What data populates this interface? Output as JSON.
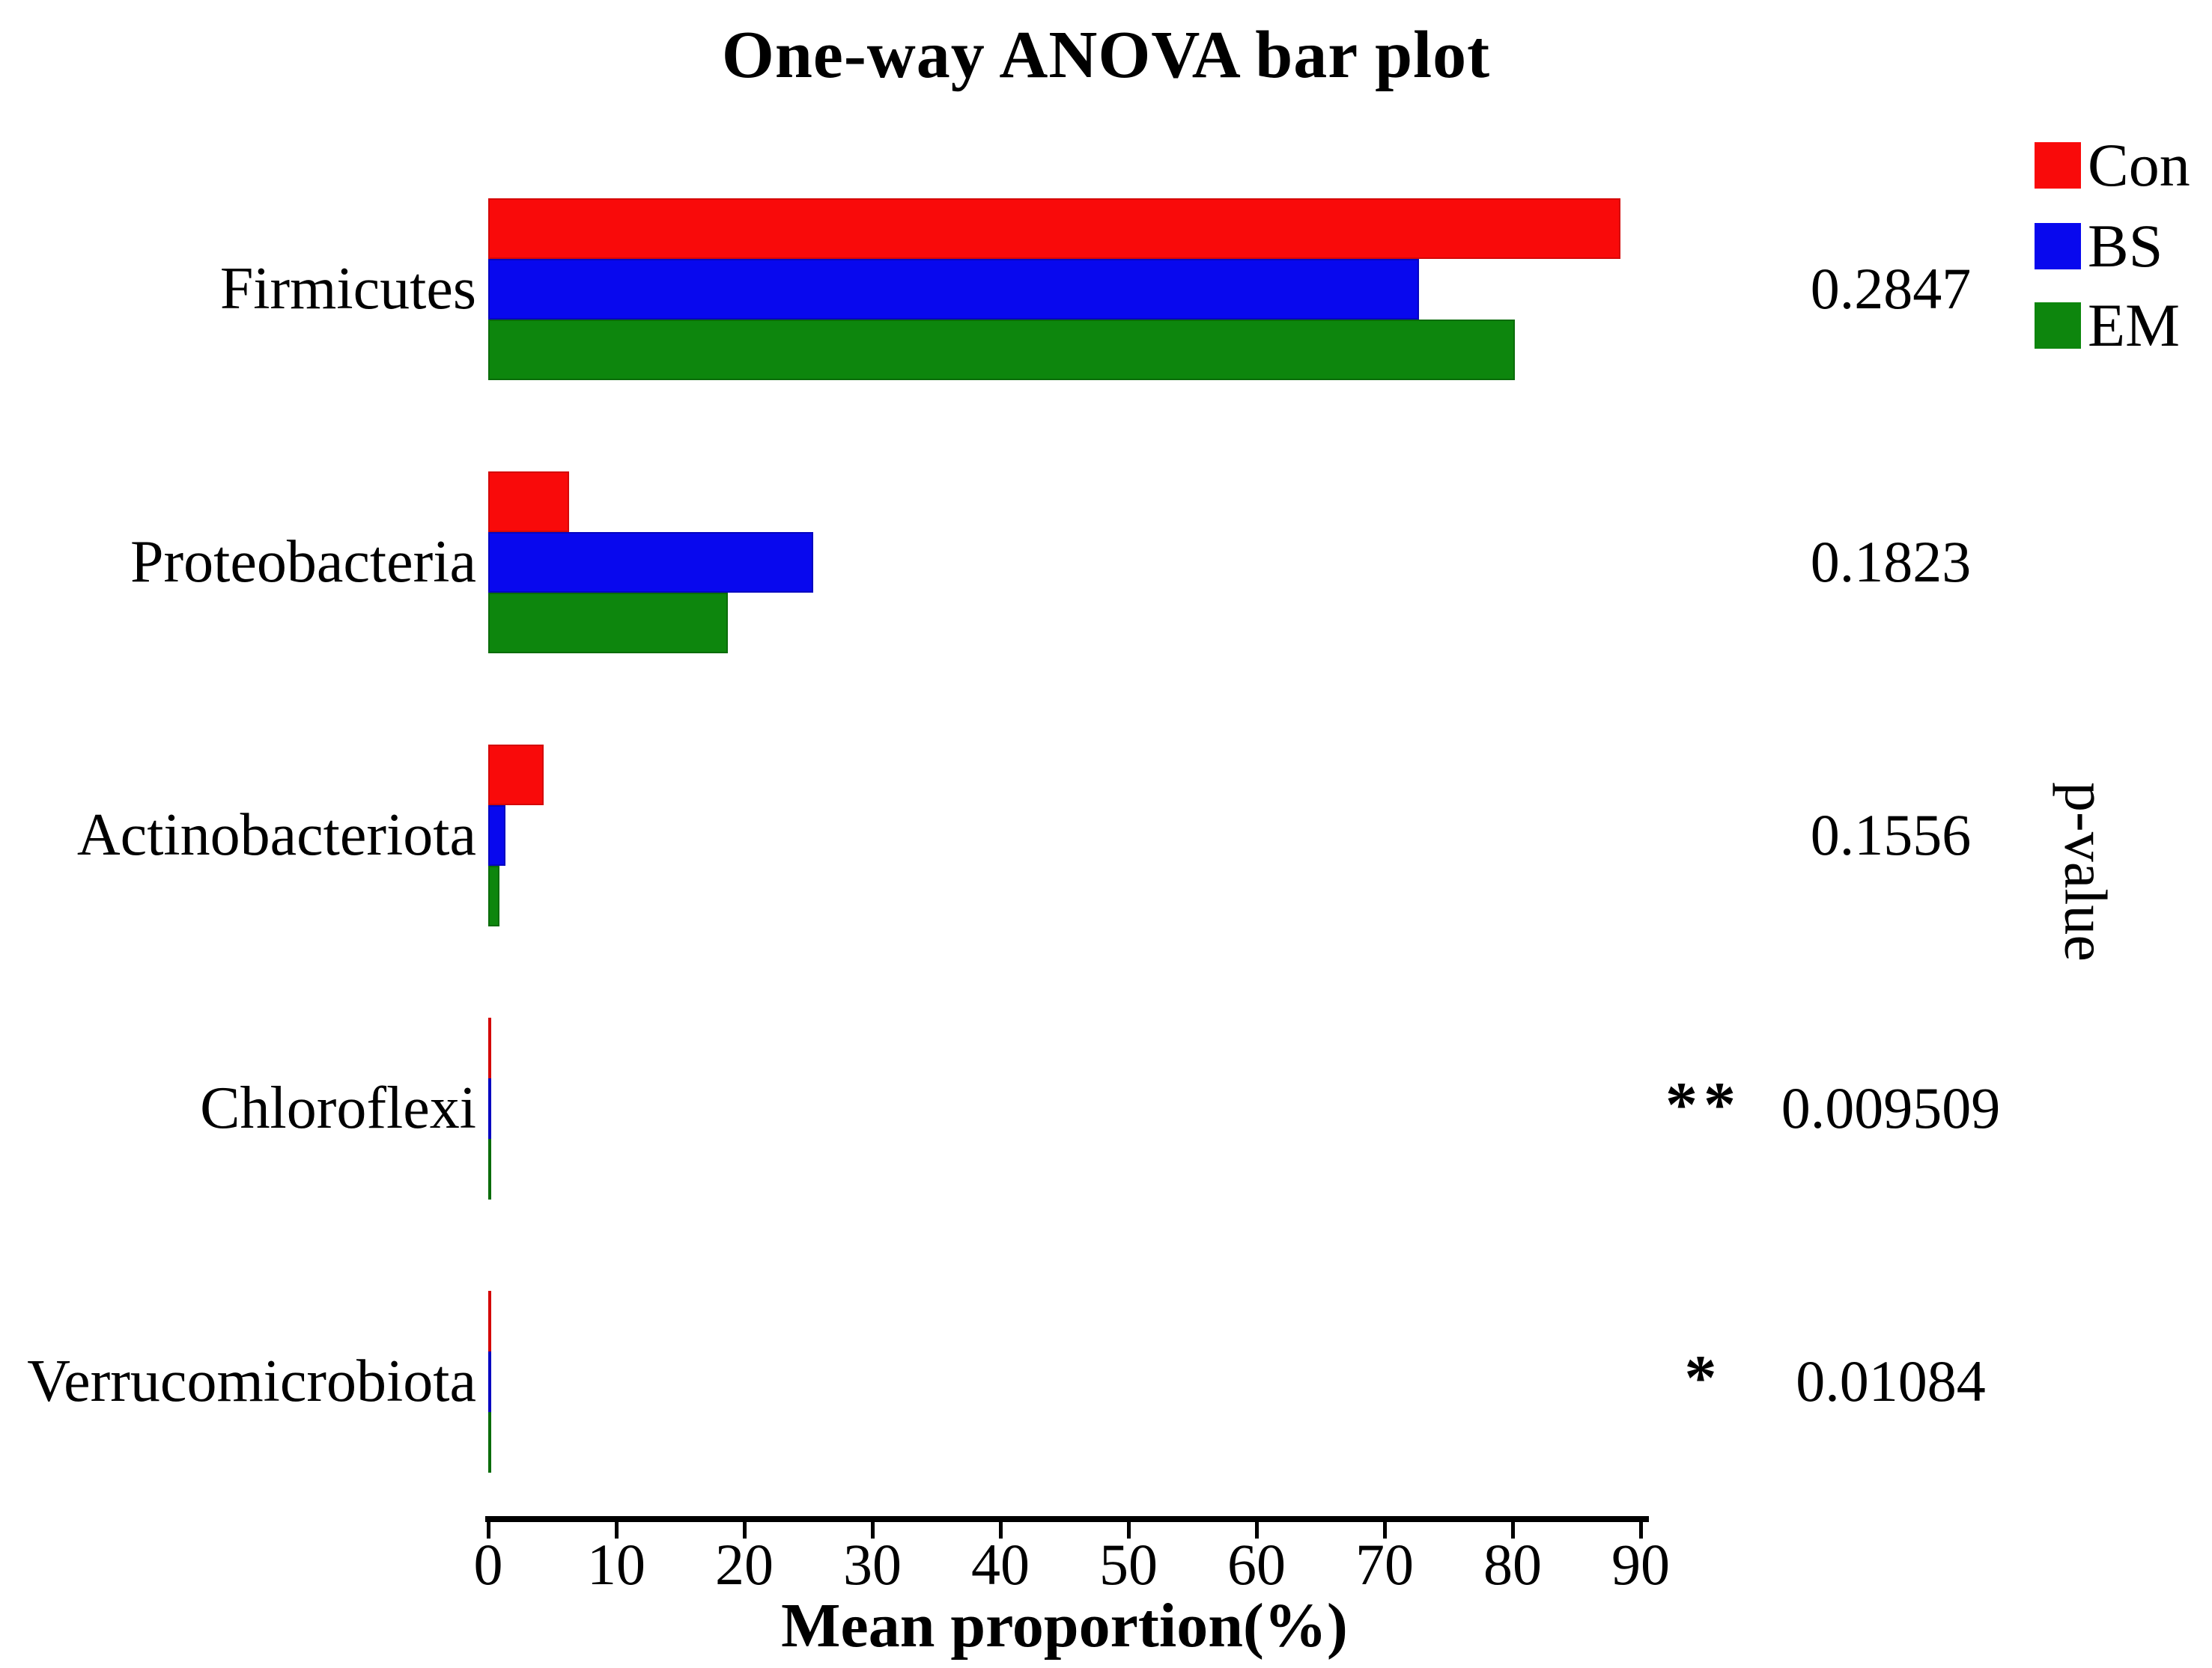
{
  "chart_data": {
    "type": "bar",
    "orientation": "horizontal",
    "title": "One-way ANOVA bar plot",
    "xlabel": "Mean proportion(%)",
    "right_label": "p-value",
    "xlim": [
      0,
      90
    ],
    "x_ticks": [
      0,
      10,
      20,
      30,
      40,
      50,
      60,
      70,
      80,
      90
    ],
    "grid": false,
    "legend_position": "top-right",
    "categories": [
      "Firmicutes",
      "Proteobacteria",
      "Actinobacteriota",
      "Chloroflexi",
      "Verrucomicrobiota"
    ],
    "series": [
      {
        "name": "Con",
        "color": "#f90a0a",
        "edge_color": "#d40808",
        "values": [
          88.4,
          6.3,
          4.3,
          0.25,
          0.18
        ]
      },
      {
        "name": "BS",
        "color": "#0808ee",
        "edge_color": "#0505c0",
        "values": [
          72.7,
          25.4,
          1.35,
          0.1,
          0.07
        ]
      },
      {
        "name": "EM",
        "color": "#0d860d",
        "edge_color": "#0a6c0a",
        "values": [
          80.2,
          18.7,
          0.85,
          0.08,
          0.05
        ]
      }
    ],
    "p_values": [
      "0.2847",
      "0.1823",
      "0.1556",
      "0.009509",
      "0.01084"
    ],
    "significance": [
      "",
      "",
      "",
      "**",
      "*"
    ]
  }
}
